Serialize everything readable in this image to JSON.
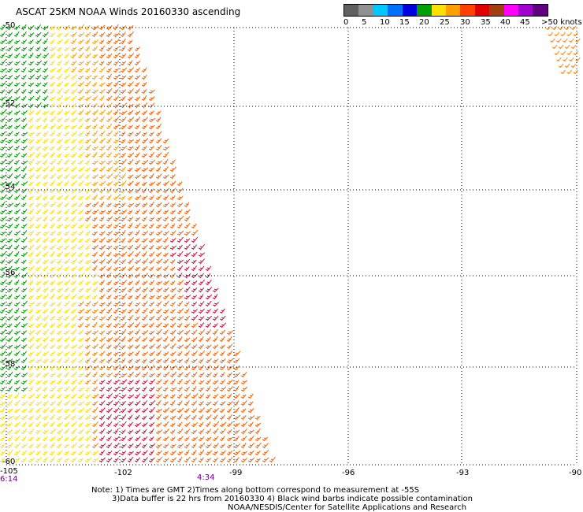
{
  "title": "ASCAT 25KM NOAA Winds 20160330 ascending",
  "legend": {
    "colors": [
      "#606060",
      "#909090",
      "#00c8ff",
      "#0070ff",
      "#0000e0",
      "#00a000",
      "#ffe000",
      "#ffa000",
      "#ff4000",
      "#e00000",
      "#a04010",
      "#ff00ff",
      "#a000d0",
      "#600080"
    ],
    "labels": [
      "0",
      "5",
      "10",
      "15",
      "20",
      "25",
      "30",
      "35",
      "40",
      "45",
      ">50 knots"
    ]
  },
  "axes": {
    "lat_labels": [
      "-50",
      "-52",
      "-54",
      "-56",
      "-58",
      "-60"
    ],
    "lon_labels": [
      "-105",
      "-102",
      "-99",
      "-96",
      "-93",
      "-90"
    ]
  },
  "times": [
    "6:14",
    "4:34"
  ],
  "notes": [
    "Note: 1) Times are GMT 2)Times along bottom correspond to measurement at -55S",
    "3)Data buffer is 22 hrs from 20160330 4) Black wind barbs indicate possible contamination",
    "NOAA/NESDIS/Center for Satellite Applications and Research"
  ]
}
